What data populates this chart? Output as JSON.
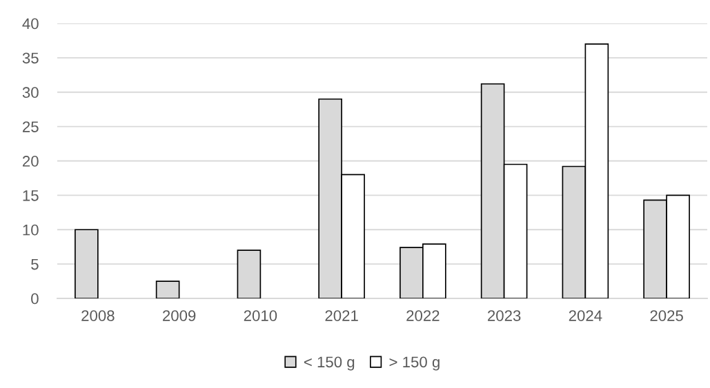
{
  "chart_data": {
    "type": "bar",
    "categories": [
      "2008",
      "2009",
      "2010",
      "2021",
      "2022",
      "2023",
      "2024",
      "2025"
    ],
    "series": [
      {
        "name": "< 150 g",
        "color": "#d9d9d9",
        "values": [
          10,
          2.5,
          7,
          29,
          7.4,
          31.2,
          19.2,
          14.3
        ]
      },
      {
        "name": "> 150 g",
        "color": "#ffffff",
        "values": [
          null,
          null,
          null,
          18,
          7.9,
          19.5,
          37,
          15
        ]
      }
    ],
    "ylim": [
      0,
      40
    ],
    "yticks": [
      0,
      5,
      10,
      15,
      20,
      25,
      30,
      35,
      40
    ],
    "grid": "y",
    "legend": "bottom"
  }
}
